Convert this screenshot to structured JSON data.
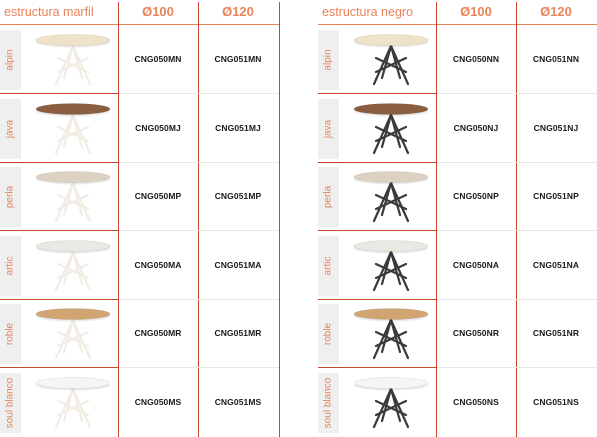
{
  "colors": {
    "accent": "#e9835a",
    "line": "#c8452a",
    "leg_marfil": "#f1ede4",
    "leg_negro": "#3a3a3a"
  },
  "panels": [
    {
      "title": "estructura marfil",
      "col1": "Ø100",
      "col2": "Ø120",
      "leg_color": "#f1ede4",
      "rows": [
        {
          "label": "alpin",
          "top_color": "#efe2c8",
          "c1": "CNG050MN",
          "c2": "CNG051MN"
        },
        {
          "label": "java",
          "top_color": "#8a5e3f",
          "c1": "CNG050MJ",
          "c2": "CNG051MJ"
        },
        {
          "label": "perla",
          "top_color": "#dcd1c3",
          "c1": "CNG050MP",
          "c2": "CNG051MP"
        },
        {
          "label": "artic",
          "top_color": "#e9e8e2",
          "c1": "CNG050MA",
          "c2": "CNG051MA"
        },
        {
          "label": "roble",
          "top_color": "#d0a572",
          "c1": "CNG050MR",
          "c2": "CNG051MR"
        },
        {
          "label": "soul blanco",
          "top_color": "#f5f5f3",
          "c1": "CNG050MS",
          "c2": "CNG051MS"
        }
      ]
    },
    {
      "title": "estructura negro",
      "col1": "Ø100",
      "col2": "Ø120",
      "leg_color": "#3a3a3a",
      "rows": [
        {
          "label": "alpin",
          "top_color": "#efe2c8",
          "c1": "CNG050NN",
          "c2": "CNG051NN"
        },
        {
          "label": "java",
          "top_color": "#8a5e3f",
          "c1": "CNG050NJ",
          "c2": "CNG051NJ"
        },
        {
          "label": "perla",
          "top_color": "#dcd1c3",
          "c1": "CNG050NP",
          "c2": "CNG051NP"
        },
        {
          "label": "artic",
          "top_color": "#e9e8e2",
          "c1": "CNG050NA",
          "c2": "CNG051NA"
        },
        {
          "label": "roble",
          "top_color": "#d0a572",
          "c1": "CNG050NR",
          "c2": "CNG051NR"
        },
        {
          "label": "soul blanco",
          "top_color": "#f5f5f3",
          "c1": "CNG050NS",
          "c2": "CNG051NS"
        }
      ]
    }
  ]
}
